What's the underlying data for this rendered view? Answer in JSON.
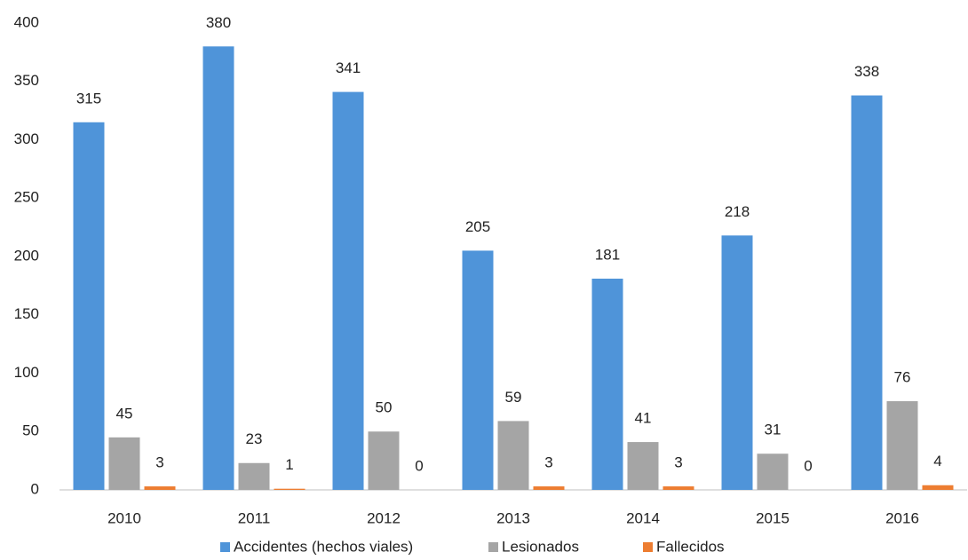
{
  "chart_data": {
    "type": "bar",
    "categories": [
      "2010",
      "2011",
      "2012",
      "2013",
      "2014",
      "2015",
      "2016"
    ],
    "series": [
      {
        "name": "Accidentes (hechos viales)",
        "color": "#4f94d9",
        "values": [
          315,
          380,
          341,
          205,
          181,
          218,
          338
        ]
      },
      {
        "name": "Lesionados",
        "color": "#a5a5a5",
        "values": [
          45,
          23,
          50,
          59,
          41,
          31,
          76
        ]
      },
      {
        "name": "Fallecidos",
        "color": "#ed7d31",
        "values": [
          3,
          1,
          0,
          3,
          3,
          0,
          4
        ]
      }
    ],
    "ylim": [
      0,
      400
    ],
    "yticks": [
      0,
      50,
      100,
      150,
      200,
      250,
      300,
      350,
      400
    ],
    "grid": false,
    "legend": "bottom",
    "data_labels": true
  }
}
